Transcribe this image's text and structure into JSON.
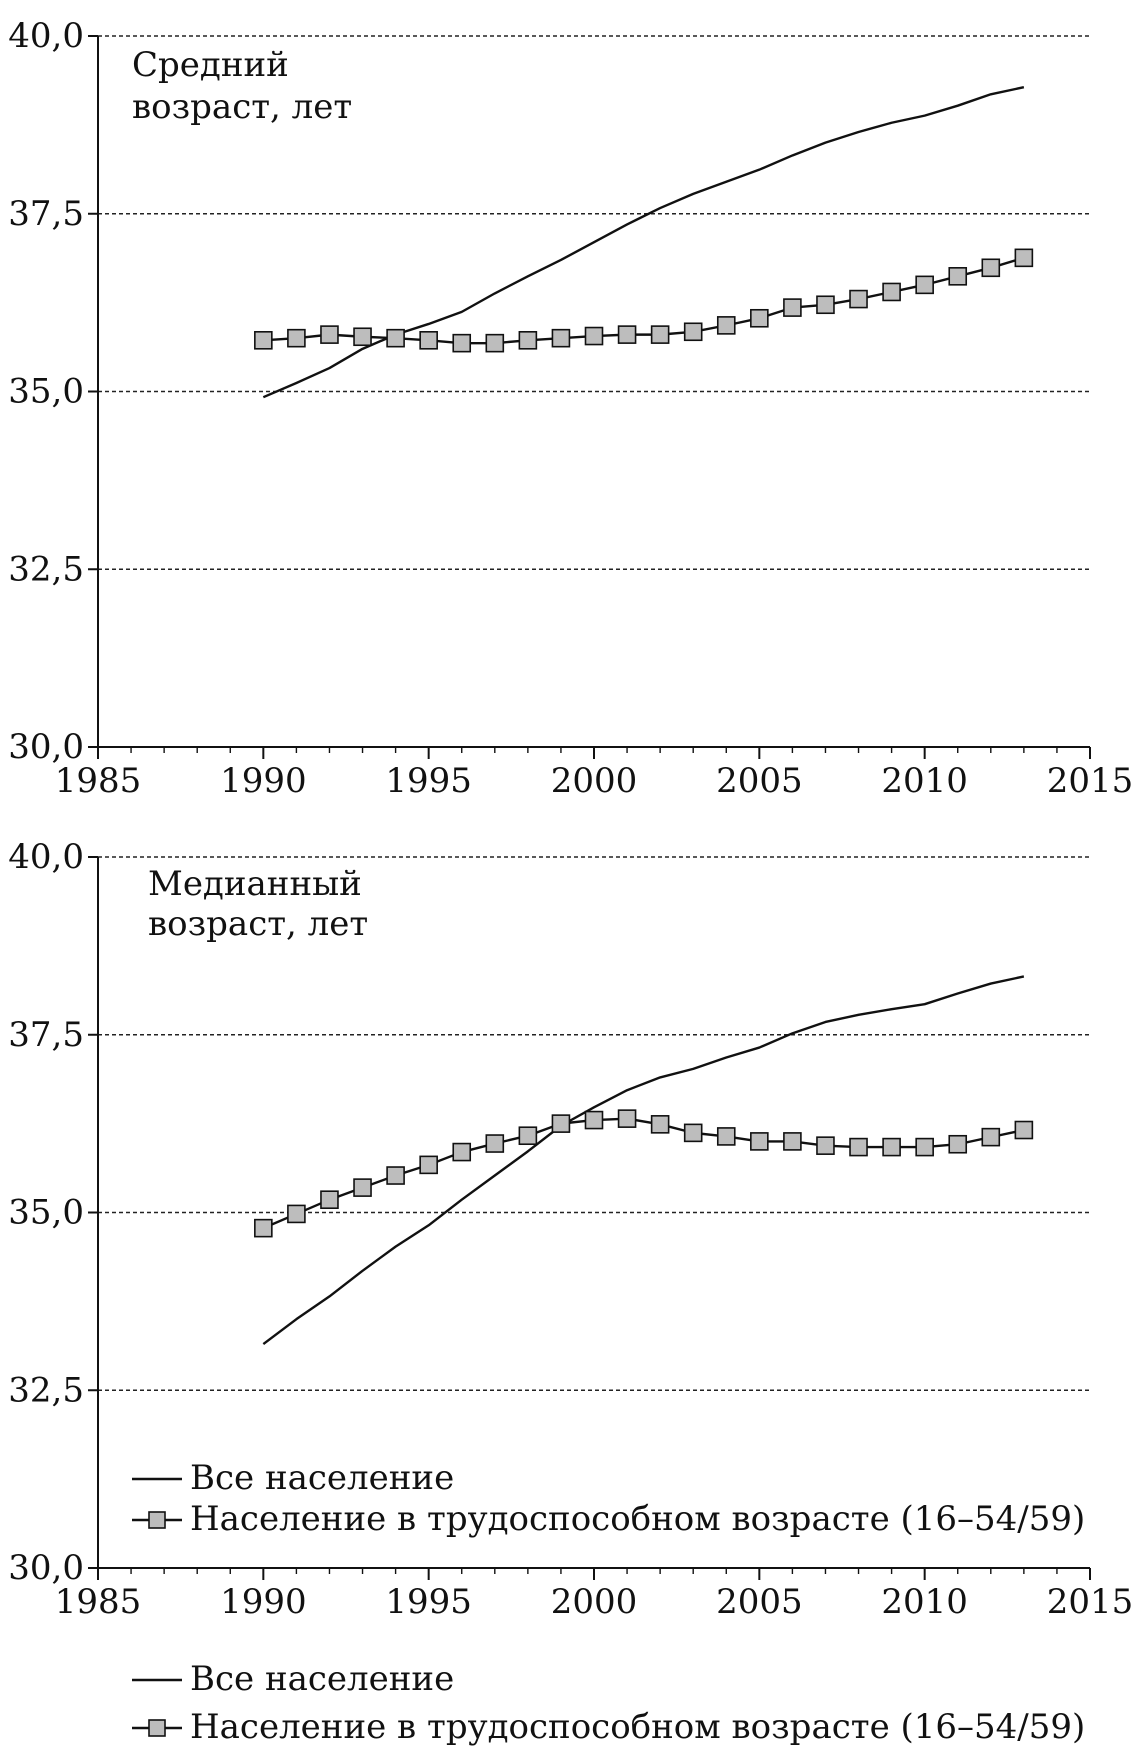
{
  "chart_data": [
    {
      "type": "line",
      "title": "Средний возраст, лет",
      "title_lines": [
        "Средний",
        "возраст, лет"
      ],
      "xlim": [
        1985,
        2015
      ],
      "ylim": [
        30,
        40
      ],
      "x_ticks": [
        1985,
        1990,
        1995,
        2000,
        2005,
        2010,
        2015
      ],
      "y_ticks": [
        30,
        32.5,
        35,
        37.5,
        40
      ],
      "x_tick_labels": [
        "1985",
        "1990",
        "1995",
        "2000",
        "2005",
        "2010",
        "2015"
      ],
      "y_tick_labels": [
        "30,0",
        "32,5",
        "35,0",
        "37,5",
        "40,0"
      ],
      "grid": true,
      "show_legend": false,
      "series": [
        {
          "name": "Все население",
          "color": "#111111",
          "marker": "none",
          "x": [
            1990,
            1991,
            1992,
            1993,
            1994,
            1995,
            1996,
            1997,
            1998,
            1999,
            2000,
            2001,
            2002,
            2003,
            2004,
            2005,
            2006,
            2007,
            2008,
            2009,
            2010,
            2011,
            2012,
            2013
          ],
          "values": [
            34.92,
            35.12,
            35.33,
            35.6,
            35.8,
            35.95,
            36.12,
            36.38,
            36.62,
            36.85,
            37.1,
            37.35,
            37.58,
            37.78,
            37.95,
            38.12,
            38.32,
            38.5,
            38.65,
            38.78,
            38.88,
            39.02,
            39.18,
            39.28
          ]
        },
        {
          "name": "Население в трудоспособном возрасте (16–54/59)",
          "color": "#111111",
          "marker": "square",
          "marker_fill": "#bdbdbd",
          "x": [
            1990,
            1991,
            1992,
            1993,
            1994,
            1995,
            1996,
            1997,
            1998,
            1999,
            2000,
            2001,
            2002,
            2003,
            2004,
            2005,
            2006,
            2007,
            2008,
            2009,
            2010,
            2011,
            2012,
            2013
          ],
          "values": [
            35.72,
            35.75,
            35.8,
            35.77,
            35.75,
            35.72,
            35.68,
            35.68,
            35.72,
            35.75,
            35.78,
            35.8,
            35.8,
            35.84,
            35.93,
            36.03,
            36.18,
            36.22,
            36.3,
            36.4,
            36.5,
            36.62,
            36.74,
            36.88
          ]
        }
      ]
    },
    {
      "type": "line",
      "title": "Медианный возраст, лет",
      "title_lines": [
        "Медианный",
        "возраст, лет"
      ],
      "xlim": [
        1985,
        2015
      ],
      "ylim": [
        30,
        40
      ],
      "x_ticks": [
        1985,
        1990,
        1995,
        2000,
        2005,
        2010,
        2015
      ],
      "y_ticks": [
        30,
        32.5,
        35,
        37.5,
        40
      ],
      "x_tick_labels": [
        "1985",
        "1990",
        "1995",
        "2000",
        "2005",
        "2010",
        "2015"
      ],
      "y_tick_labels": [
        "30,0",
        "32,5",
        "35,0",
        "37,5",
        "40,0"
      ],
      "grid": true,
      "show_legend": true,
      "legend_position": "bottom-left",
      "series": [
        {
          "name": "Все население",
          "color": "#111111",
          "marker": "none",
          "x": [
            1990,
            1991,
            1992,
            1993,
            1994,
            1995,
            1996,
            1997,
            1998,
            1999,
            2000,
            2001,
            2002,
            2003,
            2004,
            2005,
            2006,
            2007,
            2008,
            2009,
            2010,
            2011,
            2012,
            2013
          ],
          "values": [
            33.15,
            33.5,
            33.82,
            34.18,
            34.52,
            34.82,
            35.18,
            35.52,
            35.86,
            36.22,
            36.48,
            36.72,
            36.9,
            37.02,
            37.18,
            37.32,
            37.52,
            37.68,
            37.78,
            37.86,
            37.93,
            38.08,
            38.22,
            38.32
          ]
        },
        {
          "name": "Население в трудоспособном возрасте (16–54/59)",
          "color": "#111111",
          "marker": "square",
          "marker_fill": "#bdbdbd",
          "x": [
            1990,
            1991,
            1992,
            1993,
            1994,
            1995,
            1996,
            1997,
            1998,
            1999,
            2000,
            2001,
            2002,
            2003,
            2004,
            2005,
            2006,
            2007,
            2008,
            2009,
            2010,
            2011,
            2012,
            2013
          ],
          "values": [
            34.78,
            34.98,
            35.18,
            35.35,
            35.52,
            35.67,
            35.85,
            35.97,
            36.08,
            36.25,
            36.3,
            36.32,
            36.24,
            36.12,
            36.07,
            36.0,
            36.0,
            35.94,
            35.92,
            35.92,
            35.92,
            35.96,
            36.06,
            36.16
          ]
        }
      ]
    }
  ],
  "bottom_legend": [
    {
      "label": "Все население",
      "marker": "none"
    },
    {
      "label": "Население в трудоспособном возрасте (16–54/59)",
      "marker": "square",
      "marker_fill": "#bdbdbd"
    }
  ]
}
